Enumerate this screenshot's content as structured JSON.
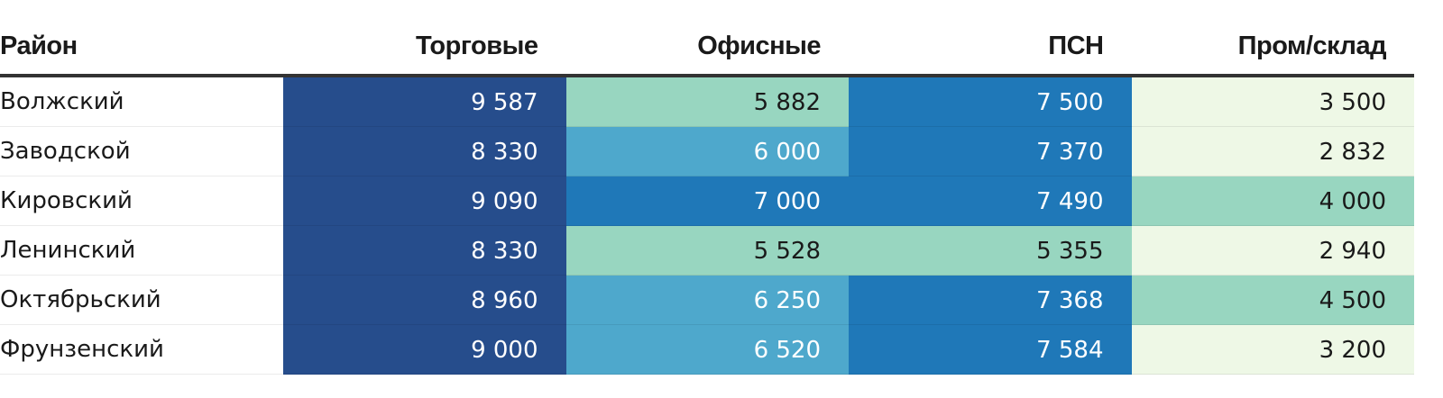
{
  "chart_data": {
    "type": "table",
    "columns": [
      "Район",
      "Торговые",
      "Офисные",
      "ПСН",
      "Пром/склад"
    ],
    "rows": [
      {
        "district": "Волжский",
        "values": [
          "9 587",
          "5 882",
          "7 500",
          "3 500"
        ],
        "numbers": [
          9587,
          5882,
          7500,
          3500
        ]
      },
      {
        "district": "Заводской",
        "values": [
          "8 330",
          "6 000",
          "7 370",
          "2 832"
        ],
        "numbers": [
          8330,
          6000,
          7370,
          2832
        ]
      },
      {
        "district": "Кировский",
        "values": [
          "9 090",
          "7 000",
          "7 490",
          "4 000"
        ],
        "numbers": [
          9090,
          7000,
          7490,
          4000
        ]
      },
      {
        "district": "Ленинский",
        "values": [
          "8 330",
          "5 528",
          "5 355",
          "2 940"
        ],
        "numbers": [
          8330,
          5528,
          5355,
          2940
        ]
      },
      {
        "district": "Октябрьский",
        "values": [
          "8 960",
          "6 250",
          "7 368",
          "4 500"
        ],
        "numbers": [
          8960,
          6250,
          7368,
          4500
        ]
      },
      {
        "district": "Фрунзенский",
        "values": [
          "9 000",
          "6 520",
          "7 584",
          "3 200"
        ],
        "numbers": [
          9000,
          6520,
          7584,
          3200
        ]
      }
    ],
    "color_scale": [
      {
        "min": 0,
        "max": 3999,
        "color": "#eef8e6",
        "text": "#1a1a1a"
      },
      {
        "min": 4000,
        "max": 5999,
        "color": "#98d6c0",
        "text": "#1a1a1a"
      },
      {
        "min": 6000,
        "max": 6999,
        "color": "#4ea8cc",
        "text": "#ffffff"
      },
      {
        "min": 7000,
        "max": 7999,
        "color": "#1f78b8",
        "text": "#ffffff"
      },
      {
        "min": 8000,
        "max": 99999,
        "color": "#264d8c",
        "text": "#ffffff"
      }
    ]
  }
}
